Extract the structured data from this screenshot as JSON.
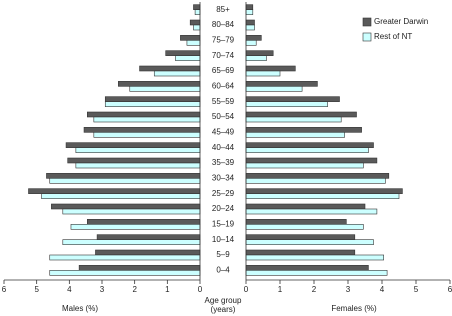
{
  "chart_data": {
    "type": "pyramid",
    "categories": [
      "85+",
      "80–84",
      "75–79",
      "70–74",
      "65–69",
      "60–64",
      "55–59",
      "50–54",
      "45–49",
      "40–44",
      "35–39",
      "30–34",
      "25–29",
      "20–24",
      "15–19",
      "10–14",
      "5–9",
      "0–4"
    ],
    "series": [
      {
        "name": "Greater Darwin",
        "color": "#5a5a5a",
        "males": [
          0.2,
          0.3,
          0.6,
          1.05,
          1.85,
          2.5,
          2.9,
          3.45,
          3.55,
          4.1,
          4.05,
          4.7,
          5.25,
          4.55,
          3.45,
          3.15,
          3.2,
          3.7
        ],
        "females": [
          0.2,
          0.25,
          0.45,
          0.8,
          1.45,
          2.1,
          2.75,
          3.25,
          3.4,
          3.75,
          3.85,
          4.2,
          4.6,
          3.5,
          2.95,
          3.2,
          3.2,
          3.6
        ]
      },
      {
        "name": "Rest of NT",
        "color": "#ccffff",
        "males": [
          0.15,
          0.2,
          0.4,
          0.75,
          1.4,
          2.15,
          2.9,
          3.25,
          3.25,
          3.8,
          3.8,
          4.6,
          4.85,
          4.2,
          3.95,
          4.2,
          4.6,
          4.6
        ],
        "females": [
          0.2,
          0.25,
          0.3,
          0.6,
          1.0,
          1.65,
          2.4,
          2.8,
          2.9,
          3.6,
          3.45,
          4.1,
          4.5,
          3.85,
          3.45,
          3.75,
          4.05,
          4.15
        ]
      }
    ],
    "xlim": [
      0,
      6
    ],
    "xticks": [
      0,
      1,
      2,
      3,
      4,
      5,
      6
    ],
    "left_label": "Males (%)",
    "right_label": "Females (%)",
    "center_label": [
      "Age group",
      "(years)"
    ]
  }
}
